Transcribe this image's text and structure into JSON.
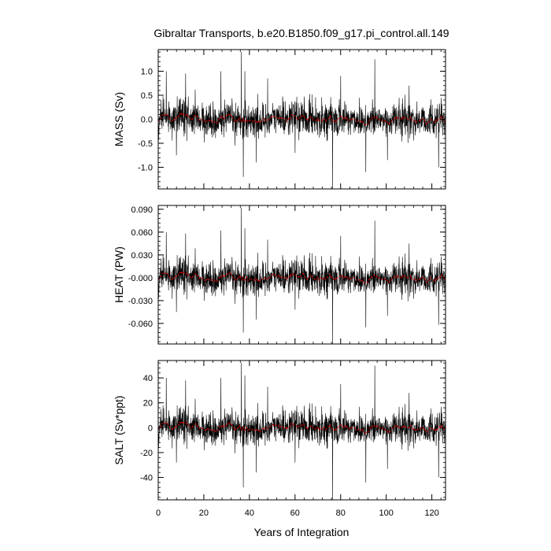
{
  "chart_data": {
    "type": "line",
    "title": "Gibraltar Transports, b.e20.B1850.f09_g17.pi_control.all.149",
    "xlabel": "Years of Integration",
    "xlim": [
      0,
      126
    ],
    "xticks": [
      0,
      20,
      40,
      60,
      80,
      100,
      120
    ],
    "xtick_labels": [
      "0",
      "20",
      "40",
      "60",
      "80",
      "100",
      "120"
    ],
    "grid": false,
    "legend": "none",
    "colors": {
      "raw": "#000000",
      "smoothed": "#cc0000"
    },
    "panels": [
      {
        "ylabel": "MASS (Sv)",
        "ylim": [
          -1.45,
          1.45
        ],
        "yticks": [
          1.0,
          0.5,
          0.0,
          -0.5,
          -1.0
        ],
        "ytick_labels": [
          "1.0",
          "0.5",
          "0.0",
          "-0.5",
          "-1.0"
        ],
        "typical_amplitude": 0.32,
        "spikes": [
          {
            "x": 3.5,
            "y": 1.0
          },
          {
            "x": 8.0,
            "y": -0.75
          },
          {
            "x": 12.0,
            "y": 0.95
          },
          {
            "x": 27.5,
            "y": 1.0
          },
          {
            "x": 36.5,
            "y": 1.4
          },
          {
            "x": 37.3,
            "y": -1.2
          },
          {
            "x": 38.0,
            "y": 1.0
          },
          {
            "x": 43.0,
            "y": -0.9
          },
          {
            "x": 48.0,
            "y": 0.85
          },
          {
            "x": 60.0,
            "y": -0.7
          },
          {
            "x": 76.5,
            "y": -1.45
          },
          {
            "x": 80.0,
            "y": 0.9
          },
          {
            "x": 91.0,
            "y": -1.1
          },
          {
            "x": 95.0,
            "y": 1.25
          },
          {
            "x": 100.5,
            "y": -0.85
          },
          {
            "x": 110.0,
            "y": 0.7
          },
          {
            "x": 123.0,
            "y": -1.0
          }
        ]
      },
      {
        "ylabel": "HEAT (PW)",
        "ylim": [
          -0.087,
          0.095
        ],
        "yticks": [
          0.09,
          0.06,
          0.03,
          0.0,
          -0.03,
          -0.06
        ],
        "ytick_labels": [
          "0.090",
          "0.060",
          "0.030",
          "-0.000",
          "-0.030",
          "-0.060"
        ],
        "typical_amplitude": 0.02,
        "spikes": [
          {
            "x": 3.5,
            "y": 0.06
          },
          {
            "x": 8.0,
            "y": -0.045
          },
          {
            "x": 12.0,
            "y": 0.058
          },
          {
            "x": 27.5,
            "y": 0.062
          },
          {
            "x": 36.5,
            "y": 0.092
          },
          {
            "x": 37.3,
            "y": -0.072
          },
          {
            "x": 38.0,
            "y": 0.065
          },
          {
            "x": 43.0,
            "y": -0.055
          },
          {
            "x": 48.0,
            "y": 0.05
          },
          {
            "x": 60.0,
            "y": -0.042
          },
          {
            "x": 76.5,
            "y": -0.087
          },
          {
            "x": 80.0,
            "y": 0.055
          },
          {
            "x": 91.0,
            "y": -0.065
          },
          {
            "x": 95.0,
            "y": 0.075
          },
          {
            "x": 100.5,
            "y": -0.05
          },
          {
            "x": 110.0,
            "y": 0.045
          },
          {
            "x": 123.0,
            "y": -0.062
          }
        ]
      },
      {
        "ylabel": "SALT (Sv*ppt)",
        "ylim": [
          -58,
          54
        ],
        "yticks": [
          40,
          20,
          0,
          -20,
          -40
        ],
        "ytick_labels": [
          "40",
          "20",
          "0",
          "-20",
          "-40"
        ],
        "typical_amplitude": 12,
        "spikes": [
          {
            "x": 3.5,
            "y": 40
          },
          {
            "x": 8.0,
            "y": -28
          },
          {
            "x": 12.0,
            "y": 38
          },
          {
            "x": 27.5,
            "y": 40
          },
          {
            "x": 36.5,
            "y": 52
          },
          {
            "x": 37.3,
            "y": -48
          },
          {
            "x": 38.0,
            "y": 42
          },
          {
            "x": 43.0,
            "y": -36
          },
          {
            "x": 48.0,
            "y": 33
          },
          {
            "x": 60.0,
            "y": -28
          },
          {
            "x": 76.5,
            "y": -58
          },
          {
            "x": 80.0,
            "y": 35
          },
          {
            "x": 91.0,
            "y": -44
          },
          {
            "x": 95.0,
            "y": 50
          },
          {
            "x": 100.5,
            "y": -33
          },
          {
            "x": 110.0,
            "y": 28
          },
          {
            "x": 123.0,
            "y": -40
          }
        ]
      }
    ]
  }
}
